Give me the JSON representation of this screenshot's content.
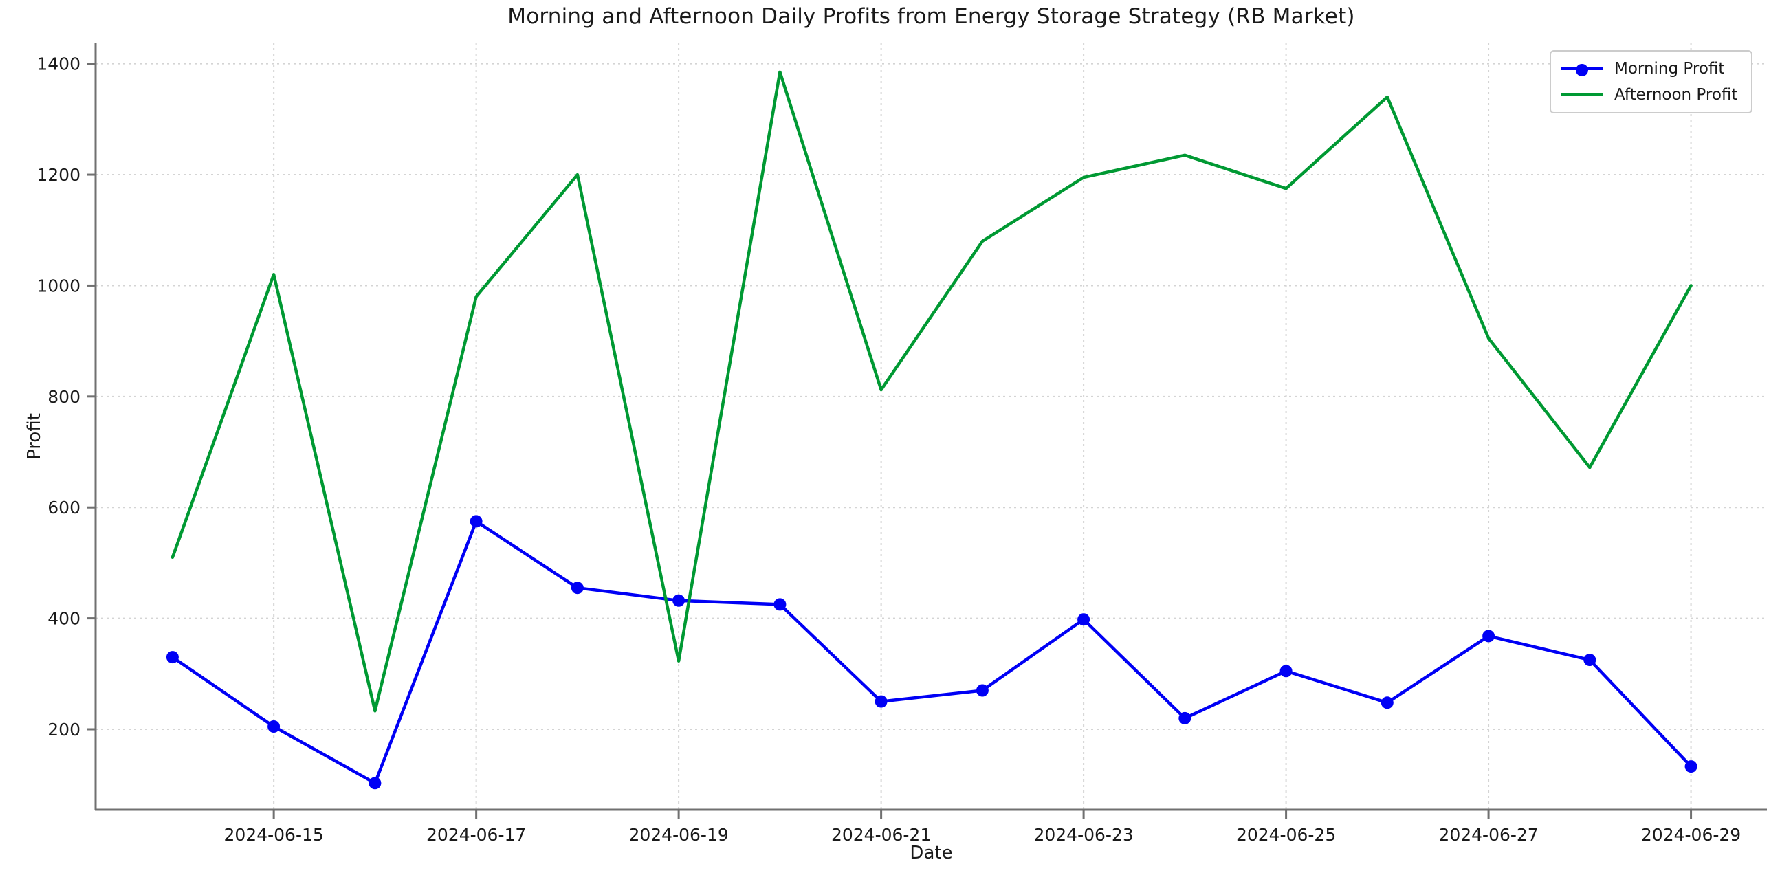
{
  "title": "Morning and Afternoon Daily Profits from Energy Storage Strategy (RB Market)",
  "chart_data": {
    "type": "line",
    "title": "Morning and Afternoon Daily Profits from Energy Storage Strategy (RB Market)",
    "xlabel": "Date",
    "ylabel": "Profit",
    "x": [
      "2024-06-14",
      "2024-06-15",
      "2024-06-16",
      "2024-06-17",
      "2024-06-18",
      "2024-06-19",
      "2024-06-20",
      "2024-06-21",
      "2024-06-22",
      "2024-06-23",
      "2024-06-24",
      "2024-06-25",
      "2024-06-26",
      "2024-06-27",
      "2024-06-28",
      "2024-06-29"
    ],
    "series": [
      {
        "name": "Morning Profit",
        "color": "#0000f5",
        "marker": "circle",
        "values": [
          330,
          205,
          103,
          575,
          455,
          432,
          425,
          250,
          270,
          398,
          220,
          305,
          248,
          368,
          325,
          133
        ]
      },
      {
        "name": "Afternoon Profit",
        "color": "#009933",
        "marker": "none",
        "values": [
          510,
          1020,
          233,
          980,
          1200,
          323,
          1385,
          812,
          1080,
          1195,
          1235,
          1175,
          1340,
          905,
          672,
          1000
        ]
      }
    ],
    "yticks": [
      200,
      400,
      600,
      800,
      1000,
      1200,
      1400
    ],
    "xtick_indices": [
      1,
      3,
      5,
      7,
      9,
      11,
      13,
      15
    ],
    "ylim": [
      55,
      1438
    ],
    "xlim_index": [
      -0.76,
      15.75
    ],
    "grid": true,
    "legend_position": "upper right",
    "grid_color": "#d4d4d4",
    "spine_color": "#707070",
    "text_color": "#1a1a1a"
  }
}
